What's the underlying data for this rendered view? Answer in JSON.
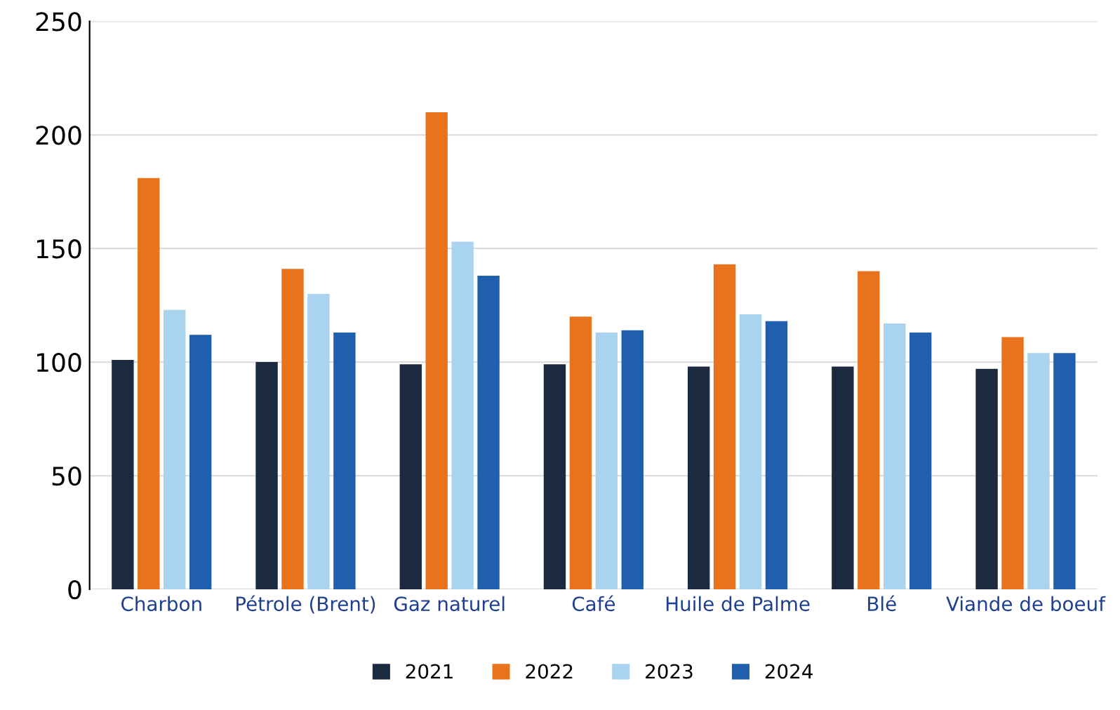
{
  "chart_data": {
    "type": "bar",
    "categories": [
      "Charbon",
      "Pétrole (Brent)",
      "Gaz naturel",
      "Café",
      "Huile de Palme",
      "Blé",
      "Viande de boeuf"
    ],
    "series": [
      {
        "name": "2021",
        "color": "#1c2a3f",
        "values": [
          101,
          100,
          99,
          99,
          98,
          98,
          97
        ]
      },
      {
        "name": "2022",
        "color": "#e8731c",
        "values": [
          181,
          141,
          210,
          120,
          143,
          140,
          111
        ]
      },
      {
        "name": "2023",
        "color": "#a9d3ef",
        "values": [
          123,
          130,
          153,
          113,
          121,
          117,
          104
        ]
      },
      {
        "name": "2024",
        "color": "#1f5fae",
        "values": [
          112,
          113,
          138,
          114,
          118,
          113,
          104
        ]
      }
    ],
    "ylim": [
      0,
      250
    ],
    "yticks": [
      0,
      50,
      100,
      150,
      200,
      250
    ],
    "grid": "y",
    "legend": "bottom"
  }
}
